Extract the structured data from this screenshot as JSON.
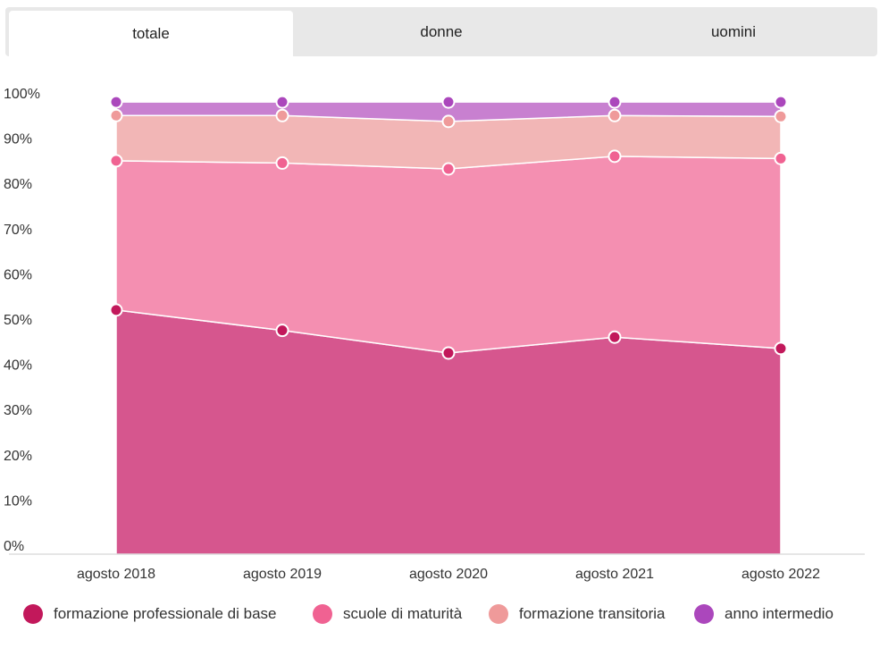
{
  "tabs": [
    {
      "label": "totale",
      "active": true
    },
    {
      "label": "donne",
      "active": false
    },
    {
      "label": "uomini",
      "active": false
    }
  ],
  "chart_data": {
    "type": "area",
    "stacked": true,
    "categories": [
      "agosto 2018",
      "agosto 2019",
      "agosto 2020",
      "agosto 2021",
      "agosto 2022"
    ],
    "y_ticks": [
      "0%",
      "10%",
      "20%",
      "30%",
      "40%",
      "50%",
      "60%",
      "70%",
      "80%",
      "90%",
      "100%"
    ],
    "ylim": [
      0,
      100
    ],
    "series": [
      {
        "name": "formazione professionale di base",
        "values": [
          52,
          47.5,
          42.5,
          46,
          43.5
        ],
        "color": "#d6568e",
        "marker": "#c2185b"
      },
      {
        "name": "scuole di maturità",
        "values": [
          33,
          37,
          40.7,
          40,
          42
        ],
        "color": "#f48fb1",
        "marker": "#f06292"
      },
      {
        "name": "formazione transitoria",
        "values": [
          10,
          10.5,
          10.5,
          9,
          9.3
        ],
        "color": "#f2b6b6",
        "marker": "#ef9a9a"
      },
      {
        "name": "anno intermedio",
        "values": [
          3,
          3,
          4.3,
          3,
          3.2
        ],
        "color": "#c880d0",
        "marker": "#ab47bc"
      }
    ],
    "legend_position": "bottom",
    "grid": false
  }
}
